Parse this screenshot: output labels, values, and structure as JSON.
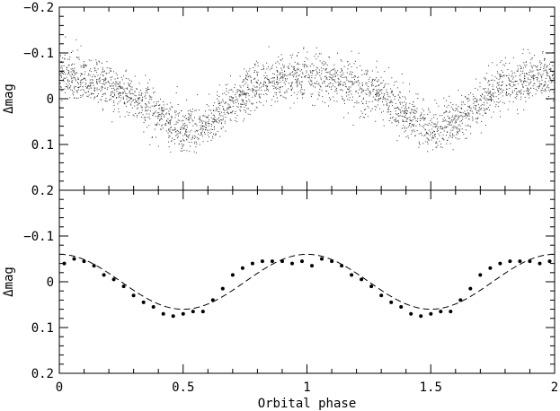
{
  "chart_data": [
    {
      "type": "scatter",
      "title": "",
      "xlabel": "",
      "ylabel": "Δmag",
      "xlim": [
        0,
        2
      ],
      "ylim": [
        -0.2,
        0.2
      ],
      "y_inverted": true,
      "grid": false,
      "x_tick_labels": [],
      "y_ticks": [
        -0.2,
        -0.1,
        0,
        0.1,
        0.2
      ],
      "y_tick_labels": [
        "−0.2",
        "−0.1",
        "0",
        "0.1",
        "0.2"
      ],
      "marker": "tiny dots",
      "n_points": 3000,
      "trend": {
        "description": "dense photometric points following a sinusoid with period 1 in phase; brightest near phase 0.0/1.0/2.0, faintest near phase 0.5/1.5",
        "x": [
          0,
          0.1,
          0.2,
          0.3,
          0.4,
          0.5,
          0.6,
          0.7,
          0.8,
          0.9,
          1.0,
          1.1,
          1.2,
          1.3,
          1.4,
          1.5,
          1.6,
          1.7,
          1.8,
          1.9,
          2.0
        ],
        "y": [
          -0.05,
          -0.045,
          -0.03,
          -0.005,
          0.035,
          0.065,
          0.05,
          0.005,
          -0.035,
          -0.045,
          -0.05,
          -0.045,
          -0.03,
          -0.005,
          0.035,
          0.065,
          0.05,
          0.005,
          -0.035,
          -0.045,
          -0.05
        ],
        "scatter_sd": 0.025
      }
    },
    {
      "type": "scatter",
      "title": "",
      "xlabel": "Orbital phase",
      "ylabel": "Δmag",
      "xlim": [
        0,
        2
      ],
      "ylim": [
        -0.2,
        0.2
      ],
      "y_inverted": true,
      "grid": false,
      "x_ticks": [
        0,
        0.5,
        1,
        1.5,
        2
      ],
      "x_tick_labels": [
        "0",
        "0.5",
        "1",
        "1.5",
        "2"
      ],
      "y_ticks": [
        -0.2,
        -0.1,
        0,
        0.1,
        0.2
      ],
      "y_tick_labels": [
        "",
        "−0.1",
        "0",
        "0.1",
        "0.2"
      ],
      "series": [
        {
          "type": "scatter",
          "marker": "dot",
          "x": [
            0.02,
            0.06,
            0.1,
            0.14,
            0.18,
            0.22,
            0.26,
            0.3,
            0.34,
            0.38,
            0.42,
            0.46,
            0.5,
            0.54,
            0.58,
            0.62,
            0.66,
            0.7,
            0.74,
            0.78,
            0.82,
            0.86,
            0.9,
            0.94,
            0.98,
            1.02,
            1.06,
            1.1,
            1.14,
            1.18,
            1.22,
            1.26,
            1.3,
            1.34,
            1.38,
            1.42,
            1.46,
            1.5,
            1.54,
            1.58,
            1.62,
            1.66,
            1.7,
            1.74,
            1.78,
            1.82,
            1.86,
            1.9,
            1.94,
            1.98
          ],
          "y": [
            -0.04,
            -0.05,
            -0.045,
            -0.035,
            -0.015,
            -0.005,
            0.01,
            0.03,
            0.045,
            0.055,
            0.07,
            0.075,
            0.07,
            0.065,
            0.065,
            0.04,
            0.015,
            -0.015,
            -0.03,
            -0.04,
            -0.045,
            -0.045,
            -0.045,
            -0.04,
            -0.045,
            -0.035,
            -0.05,
            -0.045,
            -0.035,
            -0.015,
            -0.005,
            0.01,
            0.03,
            0.045,
            0.055,
            0.07,
            0.075,
            0.07,
            0.065,
            0.065,
            0.04,
            0.015,
            -0.015,
            -0.03,
            -0.04,
            -0.045,
            -0.045,
            -0.045,
            -0.04,
            -0.045
          ]
        },
        {
          "type": "line",
          "style": "dashed",
          "function": "Δmag = −0.06·cos(2π·phase)",
          "amplitude": 0.06,
          "period": 1
        }
      ]
    }
  ]
}
